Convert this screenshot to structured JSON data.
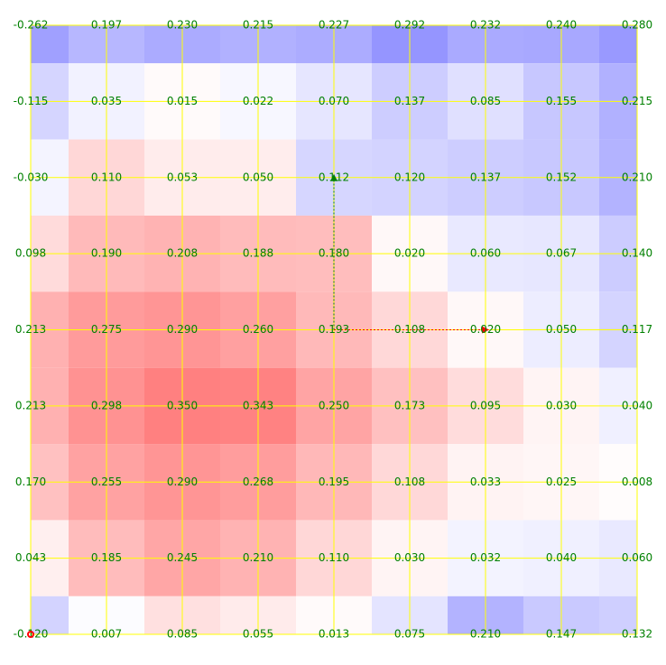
{
  "chart_data": {
    "type": "heatmap",
    "grid": "on",
    "values": [
      [
        -0.262,
        -0.197,
        -0.23,
        -0.215,
        -0.227,
        -0.292,
        -0.232,
        -0.24,
        -0.28
      ],
      [
        -0.115,
        -0.035,
        0.015,
        -0.022,
        -0.07,
        -0.137,
        -0.085,
        -0.155,
        -0.215
      ],
      [
        -0.03,
        0.11,
        0.053,
        0.05,
        -0.112,
        -0.12,
        -0.137,
        -0.152,
        -0.21
      ],
      [
        0.098,
        0.19,
        0.208,
        0.188,
        0.18,
        0.02,
        -0.06,
        -0.067,
        -0.14
      ],
      [
        0.213,
        0.275,
        0.29,
        0.26,
        0.193,
        0.108,
        0.02,
        -0.05,
        -0.117
      ],
      [
        0.213,
        0.298,
        0.35,
        0.343,
        0.25,
        0.173,
        0.095,
        0.03,
        -0.04
      ],
      [
        0.17,
        0.255,
        0.29,
        0.268,
        0.195,
        0.108,
        0.033,
        0.025,
        0.008
      ],
      [
        0.043,
        0.185,
        0.245,
        0.21,
        0.11,
        0.03,
        -0.032,
        -0.04,
        -0.06
      ],
      [
        -0.12,
        -0.007,
        0.085,
        0.055,
        0.013,
        -0.075,
        -0.21,
        -0.147,
        -0.132
      ]
    ],
    "labels": [
      [
        "-0.262",
        "0.197",
        "0.230",
        "0.215",
        "0.227",
        "0.292",
        "0.232",
        "0.240",
        "0.280"
      ],
      [
        "-0.115",
        "0.035",
        "0.015",
        "0.022",
        "0.070",
        "0.137",
        "0.085",
        "0.155",
        "0.215"
      ],
      [
        "-0.030",
        "0.110",
        "0.053",
        "0.050",
        "0.112",
        "0.120",
        "0.137",
        "0.152",
        "0.210"
      ],
      [
        "0.098",
        "0.190",
        "0.208",
        "0.188",
        "0.180",
        "0.020",
        "0.060",
        "0.067",
        "0.140"
      ],
      [
        "0.213",
        "0.275",
        "0.290",
        "0.260",
        "0.193",
        "0.108",
        "0.020",
        "0.050",
        "0.117"
      ],
      [
        "0.213",
        "0.298",
        "0.350",
        "0.343",
        "0.250",
        "0.173",
        "0.095",
        "0.030",
        "0.040"
      ],
      [
        "0.170",
        "0.255",
        "0.290",
        "0.268",
        "0.195",
        "0.108",
        "0.033",
        "0.025",
        "0.008"
      ],
      [
        "0.043",
        "0.185",
        "0.245",
        "0.210",
        "0.110",
        "0.030",
        "0.032",
        "0.040",
        "0.060"
      ],
      [
        "-0.120",
        "0.007",
        "0.085",
        "0.055",
        "0.013",
        "0.075",
        "0.210",
        "0.147",
        "0.132"
      ]
    ],
    "color_scale": {
      "positive": "#ff0000",
      "negative": "#0000ff",
      "neutral": "#ffffff",
      "max_abs": 0.35
    },
    "label_color": "#008000",
    "grid_color": "#ffff00",
    "arrows": [
      {
        "from": [
          4,
          4
        ],
        "to": [
          4,
          2
        ],
        "color": "#008000"
      },
      {
        "from": [
          4,
          4
        ],
        "to": [
          6,
          4
        ],
        "color": "#ff0000"
      }
    ],
    "markers": [
      {
        "at": [
          0,
          8
        ],
        "color": "#ff0000",
        "shape": "circle"
      }
    ]
  }
}
